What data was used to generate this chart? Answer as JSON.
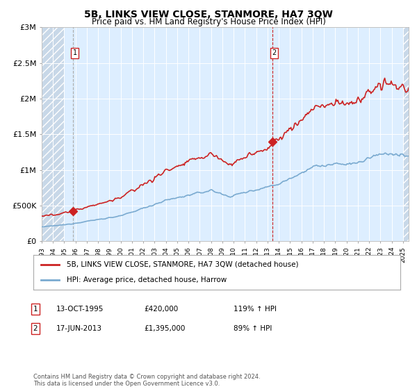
{
  "title": "5B, LINKS VIEW CLOSE, STANMORE, HA7 3QW",
  "subtitle": "Price paid vs. HM Land Registry's House Price Index (HPI)",
  "ylim": [
    0,
    3000000
  ],
  "yticks": [
    0,
    500000,
    1000000,
    1500000,
    2000000,
    2500000,
    3000000
  ],
  "ytick_labels": [
    "£0",
    "£500K",
    "£1M",
    "£1.5M",
    "£2M",
    "£2.5M",
    "£3M"
  ],
  "xlim_start": 1993.0,
  "xlim_end": 2025.5,
  "sale1_date": 1995.79,
  "sale1_price": 420000,
  "sale2_date": 2013.46,
  "sale2_price": 1395000,
  "legend_line1": "5B, LINKS VIEW CLOSE, STANMORE, HA7 3QW (detached house)",
  "legend_line2": "HPI: Average price, detached house, Harrow",
  "hpi_color": "#7aaad0",
  "sale_color": "#cc2222",
  "hatch_color": "#c8d8e8",
  "bg_color": "#ddeeff",
  "grid_color": "#c8d8e8",
  "footnote": "Contains HM Land Registry data © Crown copyright and database right 2024.\nThis data is licensed under the Open Government Licence v3.0."
}
